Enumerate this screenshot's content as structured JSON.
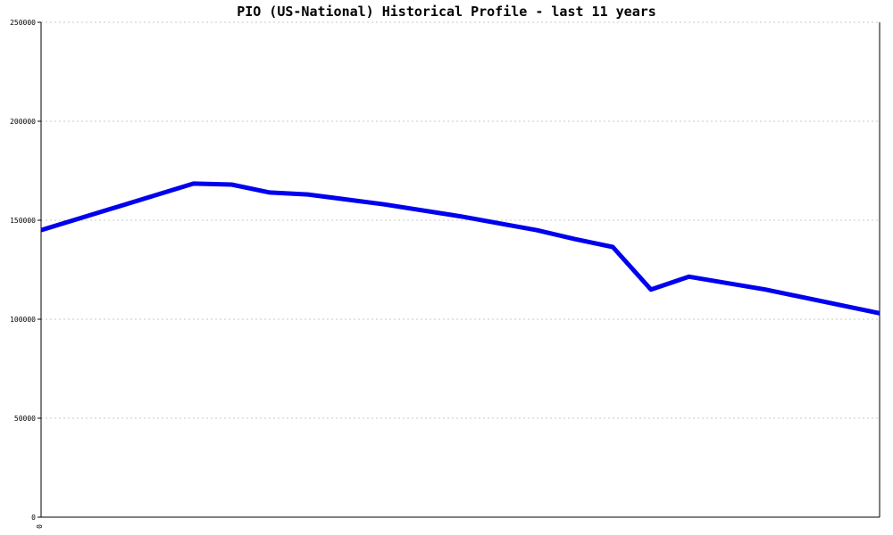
{
  "chart_data": {
    "type": "line",
    "title": "PIO (US-National) Historical Profile - last 11 years",
    "ylim": [
      0,
      250000
    ],
    "yticks": [
      0,
      50000,
      100000,
      150000,
      200000,
      250000
    ],
    "ytick_labels": [
      "0",
      "50000",
      "100000",
      "150000",
      "200000",
      "250000"
    ],
    "xticks": [
      0
    ],
    "xtick_labels": [
      "0"
    ],
    "xlim": [
      0,
      22
    ],
    "grid": true,
    "x": [
      0,
      4,
      5,
      6,
      7,
      9,
      11,
      13,
      14,
      15,
      16,
      17,
      19,
      22
    ],
    "values": [
      145000,
      168500,
      168000,
      164000,
      163000,
      158000,
      152000,
      145000,
      140500,
      136500,
      115000,
      121500,
      115000,
      103000
    ],
    "line_color": "#0000ee"
  }
}
